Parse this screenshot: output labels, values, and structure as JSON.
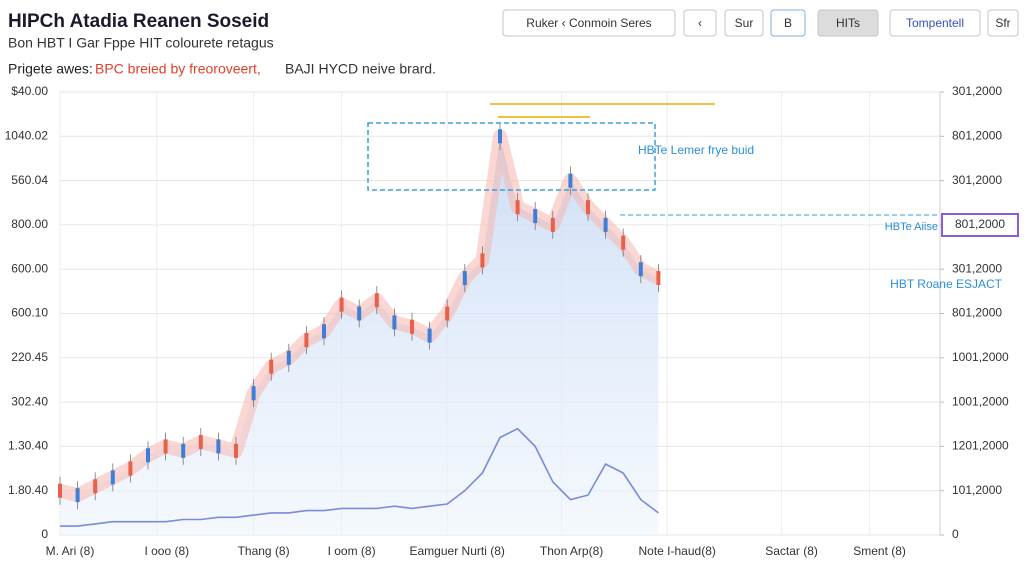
{
  "chart_data": {
    "type": "line",
    "title": "HIPCh Atadia Reanen Soseid",
    "subtitle": "Bon HBT I Gar Fppe HIT colourete retagus",
    "legend_label": "Prigete awes:",
    "buttons": [
      "Ruker ‹ Conmoin Seres",
      "‹",
      "Sur",
      "B",
      "HITs",
      "Tompentell",
      "Sfr"
    ],
    "annotations": [
      "HBTe Lemer frye buid",
      "HBTe Aiise",
      "801,2000",
      "HBT Roane ESJACT"
    ],
    "x": [
      0,
      2,
      4,
      6,
      8,
      10,
      12,
      14,
      16,
      18,
      20,
      22,
      24,
      26,
      28,
      30,
      32,
      34,
      36,
      38,
      40,
      42,
      44,
      46,
      48,
      50,
      52,
      54,
      56,
      58,
      60,
      62,
      64,
      66,
      68
    ],
    "series": [
      {
        "name": "BPC breied by freoroveert,",
        "color": "#e8604a",
        "values": [
          10,
          9,
          11,
          13,
          15,
          18,
          20,
          19,
          21,
          20,
          19,
          32,
          38,
          40,
          44,
          46,
          52,
          50,
          53,
          48,
          47,
          45,
          50,
          58,
          62,
          90,
          74,
          72,
          70,
          80,
          74,
          70,
          66,
          60,
          58
        ]
      },
      {
        "name": "BAJI HYCD neive brard.",
        "color": "#5a6fd0",
        "values": [
          2,
          2,
          2.5,
          3,
          3,
          3,
          3,
          3.5,
          3.5,
          4,
          4,
          4.5,
          5,
          5,
          5.5,
          5.5,
          6,
          6,
          6,
          6.5,
          6,
          6.5,
          7,
          10,
          14,
          22,
          24,
          20,
          12,
          8,
          9,
          16,
          14,
          8,
          5
        ]
      }
    ],
    "xlim": [
      0,
      100
    ],
    "xticks": [
      {
        "value": 0,
        "label": "M. Ari (8)"
      },
      {
        "value": 11,
        "label": "I ooo (8)"
      },
      {
        "value": 22,
        "label": "Thang (8)"
      },
      {
        "value": 32,
        "label": "I oom (8)"
      },
      {
        "value": 44,
        "label": "Eamguer Nurti (8)"
      },
      {
        "value": 57,
        "label": "Thon Arp(8)"
      },
      {
        "value": 69,
        "label": "Note I-haud(8)"
      },
      {
        "value": 82,
        "label": "Sactar (8)"
      },
      {
        "value": 92,
        "label": "Sment (8)"
      }
    ],
    "ylim": [
      0,
      100
    ],
    "yticks": [
      0,
      {
        "value": 10,
        "label": "1.80.40"
      },
      {
        "value": 20,
        "label": "1.30.40"
      },
      {
        "value": 30,
        "label": "302.40"
      },
      {
        "value": 40,
        "label": "220.45"
      },
      {
        "value": 50,
        "label": "600.10"
      },
      {
        "value": 60,
        "label": "600.00"
      },
      {
        "value": 70,
        "label": "800.00"
      },
      {
        "value": 80,
        "label": "560.04"
      },
      {
        "value": 90,
        "label": "1040.02"
      },
      {
        "value": 100,
        "label": "$40.00"
      }
    ],
    "y2lim": [
      0,
      100
    ],
    "y2ticks": [
      0,
      {
        "value": 10,
        "label": "101,2000"
      },
      {
        "value": 20,
        "label": "1201,2000"
      },
      {
        "value": 30,
        "label": "1001,2000"
      },
      {
        "value": 40,
        "label": "1001,2000"
      },
      {
        "value": 50,
        "label": "801,2000"
      },
      {
        "value": 60,
        "label": "301,2000"
      },
      {
        "value": 70,
        "label": "801,2000"
      },
      {
        "value": 80,
        "label": "301,2000"
      },
      {
        "value": 90,
        "label": "801,2000"
      },
      {
        "value": 100,
        "label": "301,2000"
      }
    ],
    "grid": true
  }
}
